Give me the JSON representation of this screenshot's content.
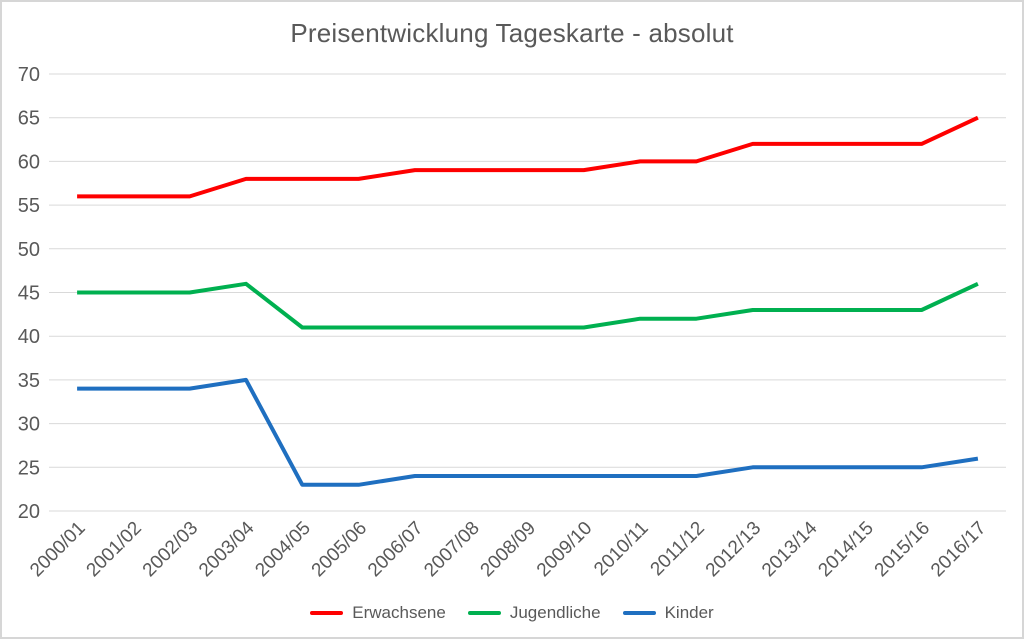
{
  "chart_data": {
    "type": "line",
    "title": "Preisentwicklung Tageskarte - absolut",
    "categories": [
      "2000/01",
      "2001/02",
      "2002/03",
      "2003/04",
      "2004/05",
      "2005/06",
      "2006/07",
      "2007/08",
      "2008/09",
      "2009/10",
      "2010/11",
      "2011/12",
      "2012/13",
      "2013/14",
      "2014/15",
      "2015/16",
      "2016/17"
    ],
    "series": [
      {
        "name": "Erwachsene",
        "color": "#fe0000",
        "values": [
          56,
          56,
          56,
          58,
          58,
          58,
          59,
          59,
          59,
          59,
          60,
          60,
          62,
          62,
          62,
          62,
          65
        ]
      },
      {
        "name": "Jugendliche",
        "color": "#00b050",
        "values": [
          45,
          45,
          45,
          46,
          41,
          41,
          41,
          41,
          41,
          41,
          42,
          42,
          43,
          43,
          43,
          43,
          46
        ]
      },
      {
        "name": "Kinder",
        "color": "#1f6fc0",
        "values": [
          34,
          34,
          34,
          35,
          23,
          23,
          24,
          24,
          24,
          24,
          24,
          24,
          25,
          25,
          25,
          25,
          26
        ]
      }
    ],
    "xlabel": "",
    "ylabel": "",
    "ylim": [
      20,
      70
    ],
    "y_ticks": [
      70,
      65,
      60,
      55,
      50,
      45,
      40,
      35,
      30,
      25,
      20
    ],
    "grid": true,
    "legend_position": "bottom"
  },
  "colors": {
    "axis_text": "#595959",
    "title_text": "#595959",
    "gridline": "#d9d9d9",
    "background": "#ffffff",
    "border": "#d6d6d6"
  }
}
